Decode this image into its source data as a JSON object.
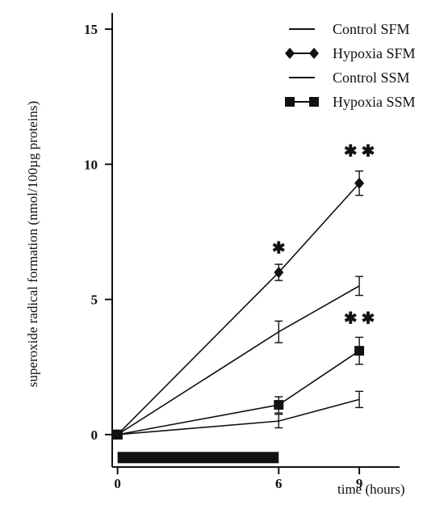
{
  "chart_data": {
    "type": "line",
    "title": "",
    "xlabel": "time (hours)",
    "ylabel": "superoxide radical formation (nmol/100µg proteins)",
    "x_ticks": [
      0,
      6,
      9
    ],
    "y_ticks": [
      0,
      5,
      10,
      15
    ],
    "xlim": [
      -0.2,
      10.5
    ],
    "ylim": [
      -1.2,
      15.6
    ],
    "grid": false,
    "legend_position": "top-right",
    "series": [
      {
        "name": "Control SFM",
        "marker": "none",
        "x": [
          0,
          6,
          9
        ],
        "y": [
          0,
          3.8,
          5.5
        ],
        "err": [
          0,
          0.4,
          0.35
        ]
      },
      {
        "name": "Hypoxia SFM",
        "marker": "diamond",
        "x": [
          0,
          6,
          9
        ],
        "y": [
          0,
          6.0,
          9.3
        ],
        "err": [
          0,
          0.3,
          0.45
        ]
      },
      {
        "name": "Control SSM",
        "marker": "none",
        "x": [
          0,
          6,
          9
        ],
        "y": [
          0,
          0.5,
          1.3
        ],
        "err": [
          0,
          0.25,
          0.3
        ]
      },
      {
        "name": "Hypoxia SSM",
        "marker": "square",
        "x": [
          0,
          6,
          9
        ],
        "y": [
          0,
          1.1,
          3.1
        ],
        "err": [
          0,
          0.3,
          0.5
        ]
      }
    ],
    "annotations": [
      {
        "text": "✱",
        "x": 6,
        "y": 6.7
      },
      {
        "text": "✱ ✱",
        "x": 9,
        "y": 10.3
      },
      {
        "text": "✱ ✱",
        "x": 9,
        "y": 4.1
      }
    ],
    "hypoxia_bar": {
      "x_start": 0,
      "x_end": 6
    }
  }
}
